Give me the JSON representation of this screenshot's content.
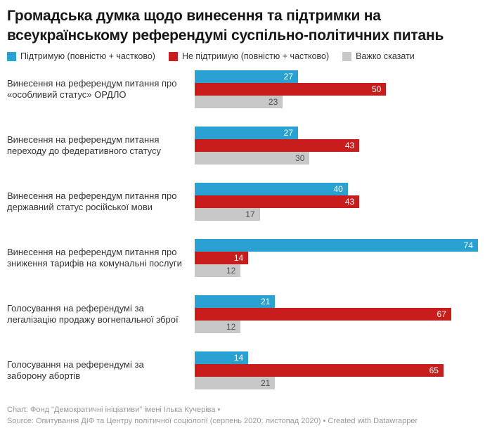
{
  "title": "Громадська думка щодо винесення та підтримки на всеукраїнському референдумі суспільно-політичних питань",
  "legend": [
    {
      "label": "Підтримую (повністю + частково)",
      "color": "#29a2d2"
    },
    {
      "label": "Не підтримую (повністю + частково)",
      "color": "#c71e1d"
    },
    {
      "label": "Важко сказати",
      "color": "#c8c8c8"
    }
  ],
  "chart_data": {
    "type": "bar",
    "orientation": "horizontal",
    "max_value": 74,
    "value_unit": "%",
    "grid": false,
    "legend_position": "top",
    "categories": [
      "Винесення на референдум питання про «особливий статус» ОРДЛО",
      "Винесення на референдум питання переходу до федеративного статусу",
      "Винесення на референдум питання про державний статус російської мови",
      "Винесення на референдум питання про зниження тарифів на комунальні послуги",
      "Голосування на референдумі за легалізацію продажу вогнепальної зброї",
      "Голосування на референдумі за заборону абортів"
    ],
    "series": [
      {
        "name": "Підтримую (повністю + частково)",
        "color": "#29a2d2",
        "label_color": "#ffffff",
        "values": [
          27,
          27,
          40,
          74,
          21,
          14
        ]
      },
      {
        "name": "Не підтримую (повністю + частково)",
        "color": "#c71e1d",
        "label_color": "#ffffff",
        "values": [
          50,
          43,
          43,
          14,
          67,
          65
        ]
      },
      {
        "name": "Важко сказати",
        "color": "#c8c8c8",
        "label_color": "#4d4d4d",
        "values": [
          23,
          30,
          17,
          12,
          12,
          21
        ]
      }
    ]
  },
  "footer": {
    "line1": "Chart: Фонд \"Демократичні ініціативи\" імені Ілька Кучеріва •",
    "line2": "Source: Опитування ДІФ та Центру політичної соціології (серпень 2020; листопад 2020) • Created with Datawrapper"
  }
}
